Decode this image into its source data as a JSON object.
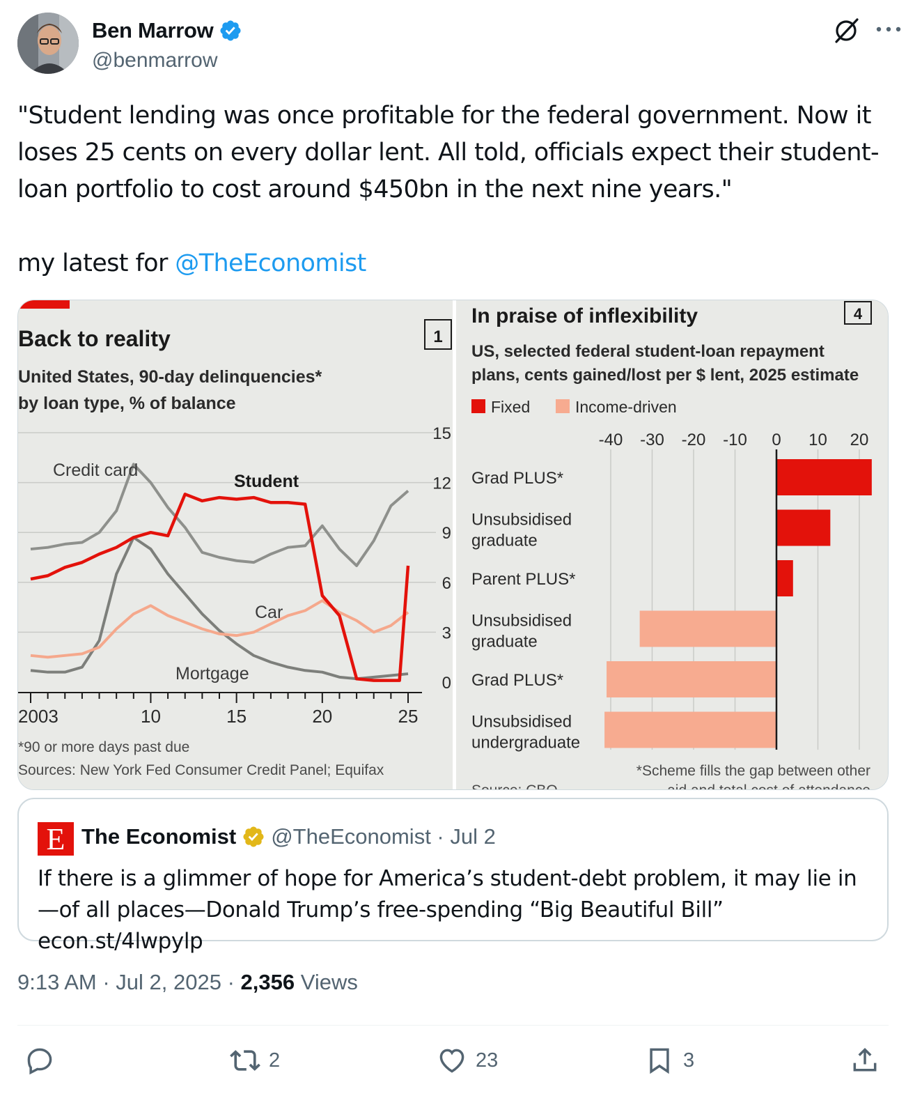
{
  "author": {
    "name": "Ben Marrow",
    "handle": "@benmarrow"
  },
  "tweet": {
    "text": "\"Student lending was once profitable for the federal government. Now it loses 25 cents on every dollar lent. All told, officials expect their student-loan portfolio to cost around $450bn in the next nine years.\"",
    "line2_prefix": "my latest for ",
    "line2_mention": "@TheEconomist"
  },
  "chart_left": {
    "number": "1",
    "title": "Back to reality",
    "subtitle1": "United States, 90-day delinquencies*",
    "subtitle2": "by loan type, % of balance",
    "label_credit": "Credit card",
    "label_student": "Student",
    "label_car": "Car",
    "label_mortgage": "Mortgage",
    "y_ticks": [
      "15",
      "12",
      "9",
      "6",
      "3",
      "0"
    ],
    "x_ticks": [
      "2003",
      "10",
      "15",
      "20",
      "25"
    ],
    "footnote": "*90 or more days past due",
    "source": "Sources: New York Fed Consumer Credit Panel; Equifax"
  },
  "chart_right": {
    "number": "4",
    "title": "In praise of inflexibility",
    "subtitle1": "US, selected federal student-loan repayment",
    "subtitle2": "plans, cents gained/lost per $ lent, 2025 estimate",
    "legend_fixed": "Fixed",
    "legend_income": "Income-driven",
    "x_ticks": [
      "-40",
      "-30",
      "-20",
      "-10",
      "0",
      "10",
      "20"
    ],
    "bar_labels": [
      [
        "Grad PLUS*"
      ],
      [
        "Unsubsidised",
        "graduate"
      ],
      [
        "Parent PLUS*"
      ],
      [
        "Unsubsidised",
        "graduate"
      ],
      [
        "Grad PLUS*"
      ],
      [
        "Unsubsidised",
        "undergraduate"
      ]
    ],
    "footnote": "*Scheme fills the gap between other",
    "footnote2": "aid and total cost of attendance",
    "source": "Source: CBO"
  },
  "chart_data": [
    {
      "type": "line",
      "title": "Back to reality",
      "subtitle": "United States, 90-day delinquencies*, by loan type, % of balance",
      "ylabel": "% of balance",
      "ylim": [
        0,
        15
      ],
      "xlim": [
        2003,
        2025
      ],
      "series": [
        {
          "name": "Credit card",
          "color": "#8e908c",
          "x": [
            2003,
            2004,
            2005,
            2006,
            2007,
            2008,
            2009,
            2010,
            2011,
            2012,
            2013,
            2014,
            2015,
            2016,
            2017,
            2018,
            2019,
            2020,
            2021,
            2022,
            2023,
            2024,
            2025
          ],
          "y": [
            8.0,
            8.1,
            8.3,
            8.4,
            9.0,
            10.3,
            13.1,
            12.0,
            10.5,
            9.3,
            7.8,
            7.5,
            7.3,
            7.2,
            7.7,
            8.1,
            8.2,
            9.4,
            8.0,
            7.0,
            8.5,
            10.6,
            11.5
          ]
        },
        {
          "name": "Student",
          "color": "#e3120b",
          "x": [
            2003,
            2004,
            2005,
            2006,
            2007,
            2008,
            2009,
            2010,
            2011,
            2012,
            2013,
            2014,
            2015,
            2016,
            2017,
            2018,
            2019,
            2020,
            2021,
            2022,
            2023,
            2024,
            2024.5,
            2025
          ],
          "y": [
            6.2,
            6.4,
            6.9,
            7.2,
            7.7,
            8.1,
            8.7,
            9.0,
            8.8,
            11.3,
            10.9,
            11.1,
            11.0,
            11.1,
            10.8,
            10.8,
            10.7,
            5.2,
            4.0,
            0.2,
            0.1,
            0.1,
            0.1,
            7.0
          ]
        },
        {
          "name": "Car",
          "color": "#f5a88c",
          "x": [
            2003,
            2004,
            2005,
            2006,
            2007,
            2008,
            2009,
            2010,
            2011,
            2012,
            2013,
            2014,
            2015,
            2016,
            2017,
            2018,
            2019,
            2020,
            2021,
            2022,
            2023,
            2024,
            2025
          ],
          "y": [
            1.6,
            1.5,
            1.6,
            1.7,
            2.1,
            3.2,
            4.1,
            4.6,
            4.0,
            3.6,
            3.2,
            2.9,
            2.8,
            3.0,
            3.5,
            4.0,
            4.3,
            4.9,
            4.2,
            3.7,
            3.0,
            3.4,
            4.2
          ]
        },
        {
          "name": "Mortgage",
          "color": "#7d7f7b",
          "x": [
            2003,
            2004,
            2005,
            2006,
            2007,
            2008,
            2009,
            2010,
            2011,
            2012,
            2013,
            2014,
            2015,
            2016,
            2017,
            2018,
            2019,
            2020,
            2021,
            2022,
            2023,
            2024,
            2025
          ],
          "y": [
            0.7,
            0.6,
            0.6,
            0.9,
            2.5,
            6.5,
            8.7,
            8.0,
            6.5,
            5.3,
            4.1,
            3.1,
            2.3,
            1.6,
            1.2,
            0.9,
            0.7,
            0.6,
            0.3,
            0.2,
            0.3,
            0.4,
            0.5
          ]
        }
      ]
    },
    {
      "type": "bar",
      "orientation": "horizontal",
      "title": "In praise of inflexibility",
      "subtitle": "US, selected federal student-loan repayment plans, cents gained/lost per $ lent, 2025 estimate",
      "xlim": [
        -42,
        22
      ],
      "categories": [
        "Grad PLUS*",
        "Unsubsidised graduate",
        "Parent PLUS*",
        "Unsubsidised graduate",
        "Grad PLUS*",
        "Unsubsidised undergraduate"
      ],
      "values": [
        23,
        13,
        4,
        -33,
        -41,
        -41.5
      ],
      "groups": [
        "Fixed",
        "Fixed",
        "Fixed",
        "Income-driven",
        "Income-driven",
        "Income-driven"
      ],
      "colors": {
        "Fixed": "#e3120b",
        "Income-driven": "#f7ab90"
      }
    }
  ],
  "quote": {
    "name": "The Economist",
    "meta": "@TheEconomist · Jul 2",
    "logo": "E",
    "text": "If there is a glimmer of hope for America’s student-debt problem, it may lie in—of all places—Donald Trump’s free-spending “Big Beautiful Bill” econ.st/4lwpylp"
  },
  "meta": {
    "time_date": "9:13 AM · Jul 2, 2025 · ",
    "views_count": "2,356",
    "views_label": " Views"
  },
  "actions": {
    "reposts": "2",
    "likes": "23",
    "bookmarks": "3"
  }
}
